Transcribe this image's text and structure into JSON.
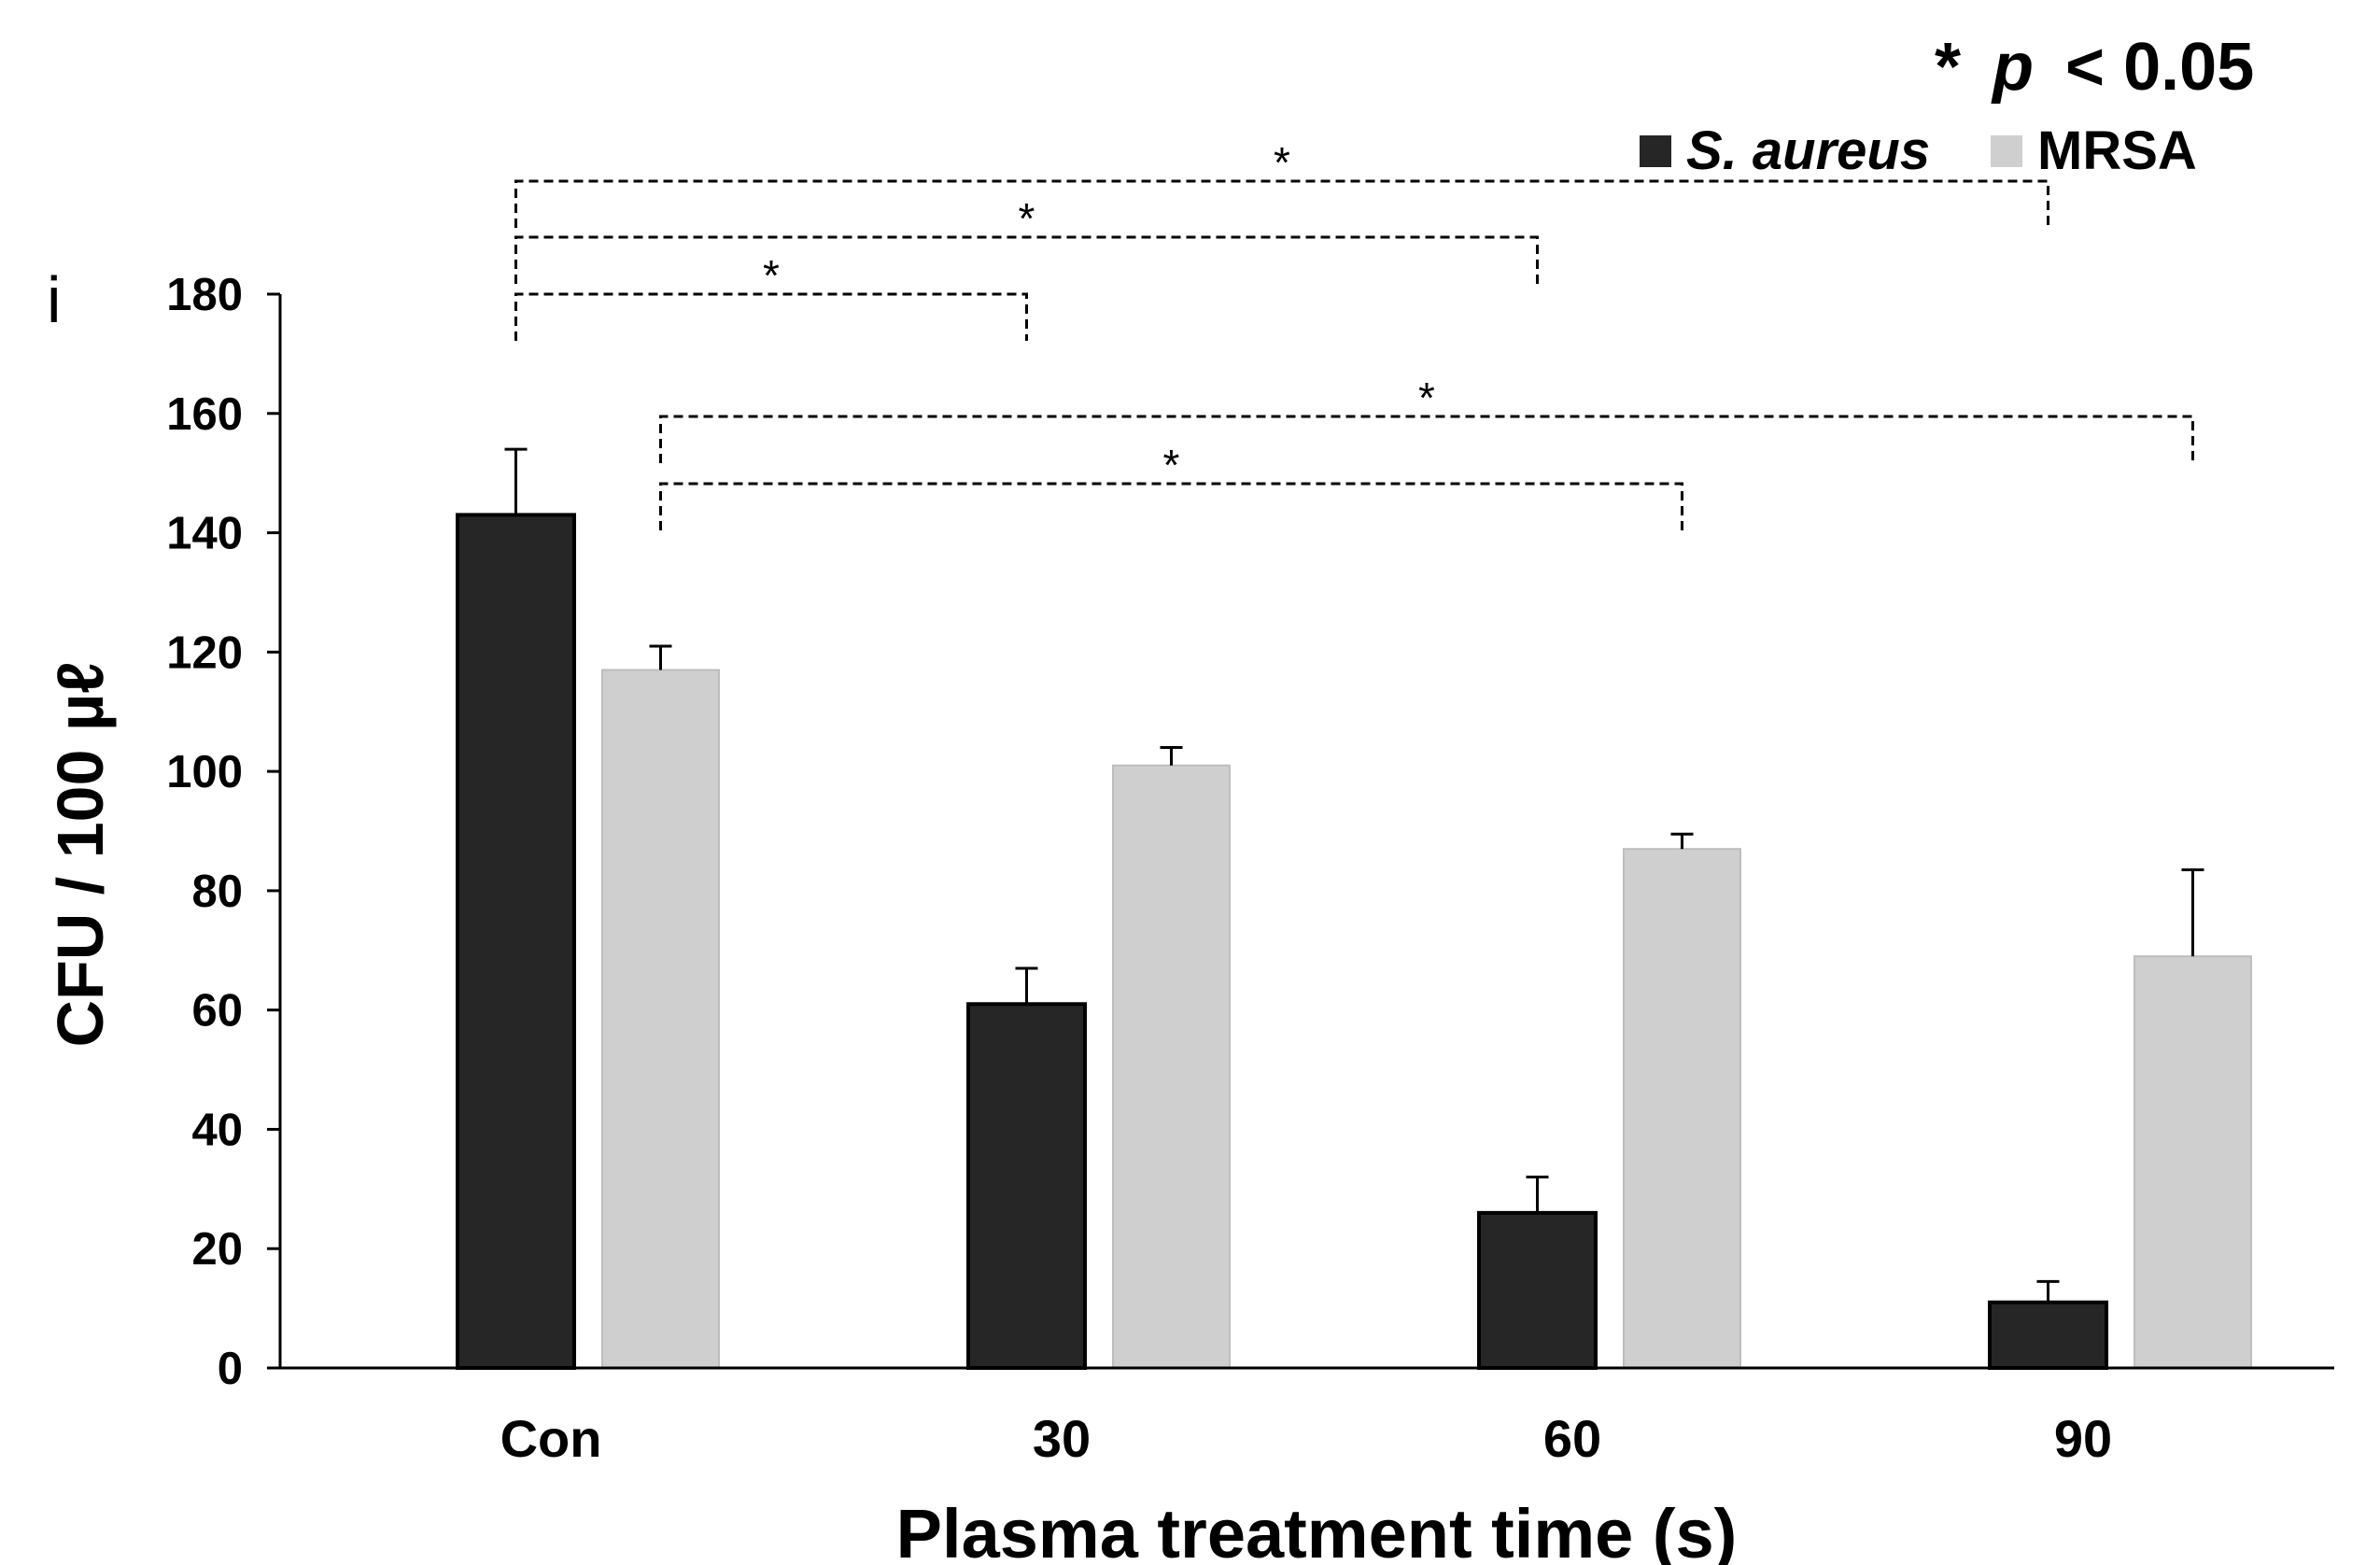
{
  "chart_data": {
    "type": "bar",
    "panel_label": "i",
    "categories": [
      "Con",
      "30",
      "60",
      "90"
    ],
    "series": [
      {
        "name": "S. aureus",
        "color": "#262626",
        "values": [
          143,
          61,
          26,
          11
        ],
        "errors": [
          11,
          6,
          6,
          3.5
        ]
      },
      {
        "name": "MRSA",
        "color": "#d0cfd0",
        "values": [
          117,
          101,
          87,
          69
        ],
        "errors": [
          4,
          3,
          2.5,
          14.5
        ]
      }
    ],
    "xlabel": "Plasma treatment time (s)",
    "ylabel": "CFU / 100 µℓ",
    "ylim": [
      0,
      180
    ],
    "yticks": [
      0,
      20,
      40,
      60,
      80,
      100,
      120,
      140,
      160,
      180
    ],
    "significance": {
      "star": "*",
      "legend_star": "*",
      "legend_p": "p",
      "legend_text": "< 0.05",
      "comparisons": [
        {
          "series": 0,
          "from": 0,
          "to": 1,
          "level": 1
        },
        {
          "series": 0,
          "from": 0,
          "to": 2,
          "level": 2
        },
        {
          "series": 0,
          "from": 0,
          "to": 3,
          "level": 3
        },
        {
          "series": 1,
          "from": 0,
          "to": 2,
          "level": 1
        },
        {
          "series": 1,
          "from": 0,
          "to": 3,
          "level": 2
        }
      ]
    }
  }
}
